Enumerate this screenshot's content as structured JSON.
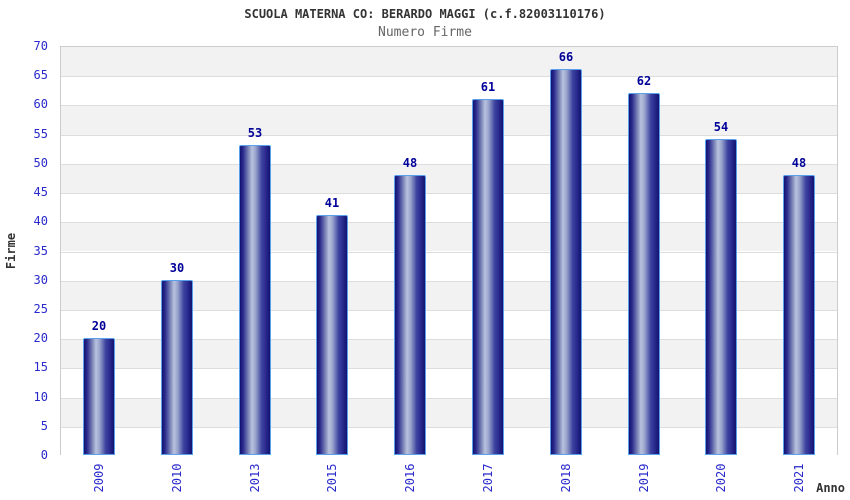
{
  "chart_data": {
    "type": "bar",
    "title": "SCUOLA MATERNA CO: BERARDO MAGGI (c.f.82003110176)",
    "subtitle": "Numero Firme",
    "xlabel": "Anno",
    "ylabel": "Firme",
    "categories": [
      "2009",
      "2010",
      "2013",
      "2015",
      "2016",
      "2017",
      "2018",
      "2019",
      "2020",
      "2021"
    ],
    "values": [
      20,
      30,
      53,
      41,
      48,
      61,
      66,
      62,
      54,
      48
    ],
    "ylim": [
      0,
      70
    ],
    "ytick_step": 5,
    "grid": true,
    "legend": "none",
    "colors": {
      "bar_edge_dark": "#12126f",
      "bar_body": "#2a2a8e",
      "bar_highlight": "#b8c2de",
      "bar_border": "#59a0ec",
      "value_label": "#000099",
      "tick_label": "#2929cc",
      "axis_title": "#333333",
      "title": "#333333",
      "subtitle": "#666666",
      "band_gray": "#f2f2f2",
      "band_white": "#ffffff",
      "gridline": "#dddddd",
      "plot_border": "#cccccc"
    }
  }
}
